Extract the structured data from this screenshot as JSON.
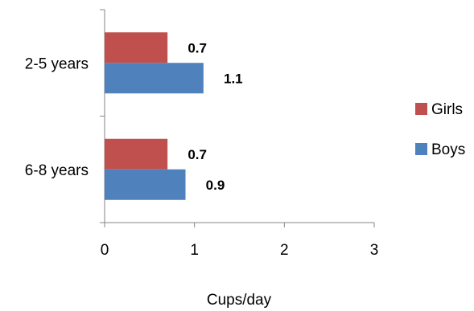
{
  "chart_data": {
    "type": "bar",
    "orientation": "horizontal",
    "categories": [
      "2-5 years",
      "6-8 years"
    ],
    "series": [
      {
        "name": "Girls",
        "values": [
          0.7,
          0.7
        ],
        "labels": [
          "0.7",
          "0.7"
        ],
        "color": "#C0504D"
      },
      {
        "name": "Boys",
        "values": [
          1.1,
          0.9
        ],
        "labels": [
          "1.1",
          "0.9"
        ],
        "color": "#4F81BD"
      }
    ],
    "xlabel": "Cups/day",
    "xlim": [
      0,
      3
    ],
    "xticks": [
      "0",
      "1",
      "2",
      "3"
    ],
    "grid": false,
    "legend_position": "right"
  }
}
